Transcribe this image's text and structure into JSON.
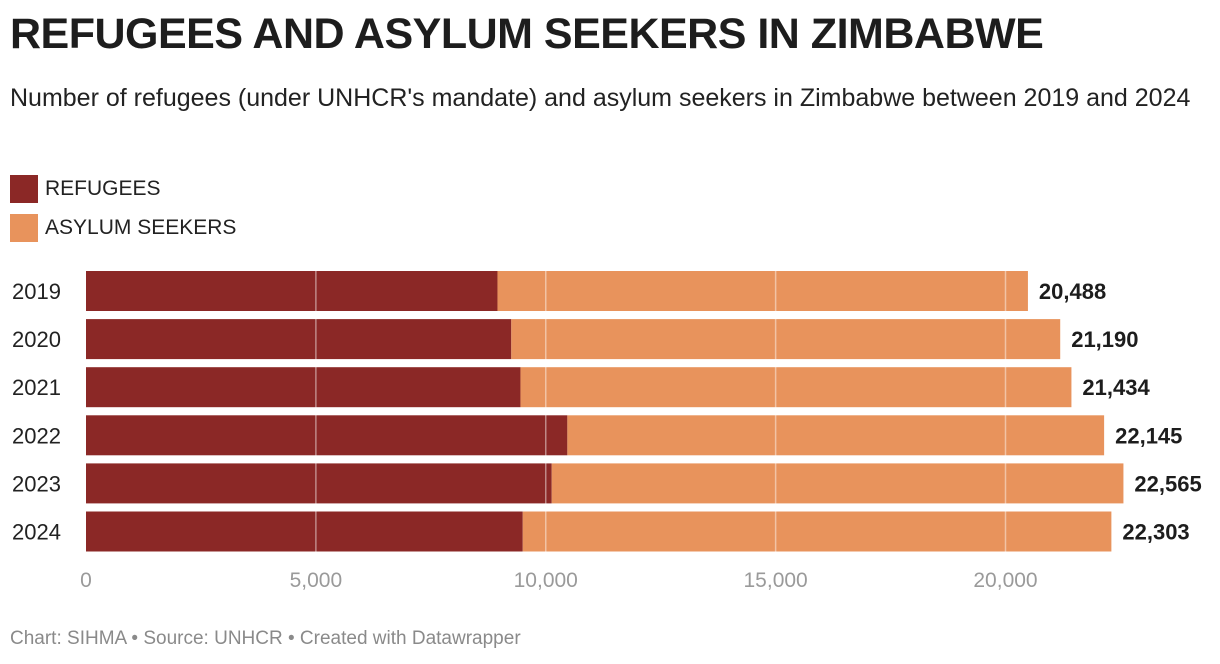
{
  "title": "REFUGEES AND ASYLUM SEEKERS IN ZIMBABWE",
  "subtitle": "Number of refugees (under UNHCR's mandate) and asylum seekers in Zimbabwe between 2019 and 2024",
  "footer": "Chart: SIHMA • Source: UNHCR • Created with Datawrapper",
  "colors": {
    "refugees": "#8b2826",
    "asylum_seekers": "#e8935c",
    "grid": "#ffffff",
    "tick_text": "#9a9a9a"
  },
  "chart_data": {
    "type": "bar",
    "orientation": "horizontal",
    "stacked": true,
    "categories": [
      "2019",
      "2020",
      "2021",
      "2022",
      "2023",
      "2024"
    ],
    "series": [
      {
        "name": "REFUGEES",
        "values": [
          8950,
          9250,
          9450,
          10470,
          10130,
          9500
        ]
      },
      {
        "name": "ASYLUM SEEKERS",
        "values": [
          11538,
          11940,
          11984,
          11675,
          12435,
          12803
        ]
      }
    ],
    "totals": [
      20488,
      21190,
      21434,
      22145,
      22565,
      22303
    ],
    "total_labels": [
      "20,488",
      "21,190",
      "21,434",
      "22,145",
      "22,565",
      "22,303"
    ],
    "x_ticks": [
      0,
      5000,
      10000,
      15000,
      20000
    ],
    "x_tick_labels": [
      "0",
      "5,000",
      "10,000",
      "15,000",
      "20,000"
    ],
    "xlim": [
      0,
      22565
    ],
    "legend_position": "top-left",
    "grid": true
  }
}
